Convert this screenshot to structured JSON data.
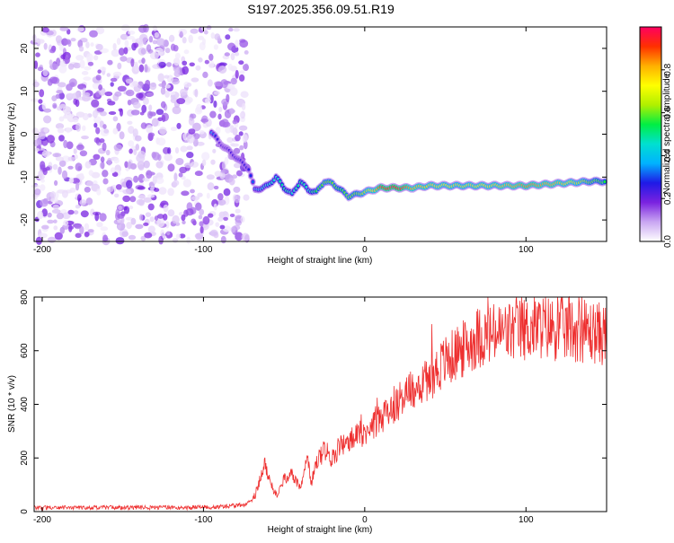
{
  "title": "S197.2025.356.09.51.R19",
  "chart_data": [
    {
      "type": "heatmap",
      "name": "spectrogram",
      "xlabel": "Height of straight line (km)",
      "ylabel": "Frequency (Hz)",
      "xlim": [
        -205,
        150
      ],
      "ylim": [
        -25,
        25
      ],
      "xticks": [
        -200,
        -100,
        0,
        100
      ],
      "yticks": [
        20,
        10,
        0,
        -10,
        -20
      ],
      "colorbar": {
        "label": "Normalized spectral amplitude",
        "range": [
          0,
          1
        ],
        "ticks": [
          0.0,
          0.2,
          0.4,
          0.6,
          0.8
        ],
        "colors": [
          "#ffffff",
          "#c9a6f2",
          "#7a22e0",
          "#1f19e6",
          "#00b2ff",
          "#00e0d0",
          "#00ee44",
          "#b0f000",
          "#ffff00",
          "#ffb000",
          "#ff3000",
          "#ff0060"
        ]
      },
      "noise_region": {
        "x": [
          -205,
          -73
        ],
        "y": [
          -25,
          25
        ],
        "amplitude_range": [
          0.02,
          0.2
        ]
      },
      "signal_ridge": [
        {
          "x": -95,
          "y": 0.5,
          "a": 0.35
        },
        {
          "x": -90,
          "y": -2,
          "a": 0.2
        },
        {
          "x": -72,
          "y": -8,
          "a": 0.25
        },
        {
          "x": -68,
          "y": -13,
          "a": 0.35
        },
        {
          "x": -60,
          "y": -12,
          "a": 0.45
        },
        {
          "x": -55,
          "y": -10,
          "a": 0.45
        },
        {
          "x": -50,
          "y": -12.5,
          "a": 0.5
        },
        {
          "x": -45,
          "y": -14,
          "a": 0.45
        },
        {
          "x": -40,
          "y": -11,
          "a": 0.5
        },
        {
          "x": -35,
          "y": -13,
          "a": 0.45
        },
        {
          "x": -30,
          "y": -13.5,
          "a": 0.55
        },
        {
          "x": -25,
          "y": -11,
          "a": 0.6
        },
        {
          "x": -20,
          "y": -11.5,
          "a": 0.6
        },
        {
          "x": -15,
          "y": -13,
          "a": 0.55
        },
        {
          "x": -10,
          "y": -14.5,
          "a": 0.6
        },
        {
          "x": -5,
          "y": -14,
          "a": 0.6
        },
        {
          "x": 0,
          "y": -13.5,
          "a": 0.65
        },
        {
          "x": 5,
          "y": -13,
          "a": 0.75
        },
        {
          "x": 10,
          "y": -12.5,
          "a": 0.9
        },
        {
          "x": 20,
          "y": -12.5,
          "a": 0.95
        },
        {
          "x": 30,
          "y": -12.5,
          "a": 0.8
        },
        {
          "x": 40,
          "y": -12,
          "a": 0.75
        },
        {
          "x": 60,
          "y": -12,
          "a": 0.7
        },
        {
          "x": 80,
          "y": -12,
          "a": 0.75
        },
        {
          "x": 100,
          "y": -12,
          "a": 0.85
        },
        {
          "x": 120,
          "y": -11.5,
          "a": 0.8
        },
        {
          "x": 140,
          "y": -11,
          "a": 0.6
        },
        {
          "x": 150,
          "y": -11,
          "a": 0.55
        }
      ]
    },
    {
      "type": "line",
      "name": "snr",
      "xlabel": "Height of straight line (km)",
      "ylabel": "SNR (10 * v/v)",
      "xlim": [
        -205,
        150
      ],
      "ylim": [
        0,
        800
      ],
      "xticks": [
        -200,
        -100,
        0,
        100
      ],
      "yticks": [
        0,
        200,
        400,
        600,
        800
      ],
      "color": "#ee3030",
      "series": [
        {
          "name": "SNR",
          "x": [
            -205,
            -190,
            -170,
            -150,
            -130,
            -110,
            -90,
            -75,
            -68,
            -62,
            -58,
            -55,
            -50,
            -45,
            -40,
            -36,
            -33,
            -30,
            -25,
            -20,
            -15,
            -10,
            -5,
            0,
            10,
            20,
            30,
            40,
            50,
            60,
            70,
            80,
            90,
            100,
            110,
            120,
            130,
            140,
            150
          ],
          "y": [
            15,
            15,
            15,
            15,
            15,
            15,
            18,
            25,
            60,
            180,
            100,
            60,
            120,
            140,
            90,
            200,
            110,
            180,
            230,
            200,
            250,
            260,
            280,
            300,
            350,
            410,
            460,
            500,
            560,
            600,
            650,
            660,
            670,
            680,
            690,
            680,
            680,
            670,
            660
          ]
        }
      ]
    }
  ]
}
